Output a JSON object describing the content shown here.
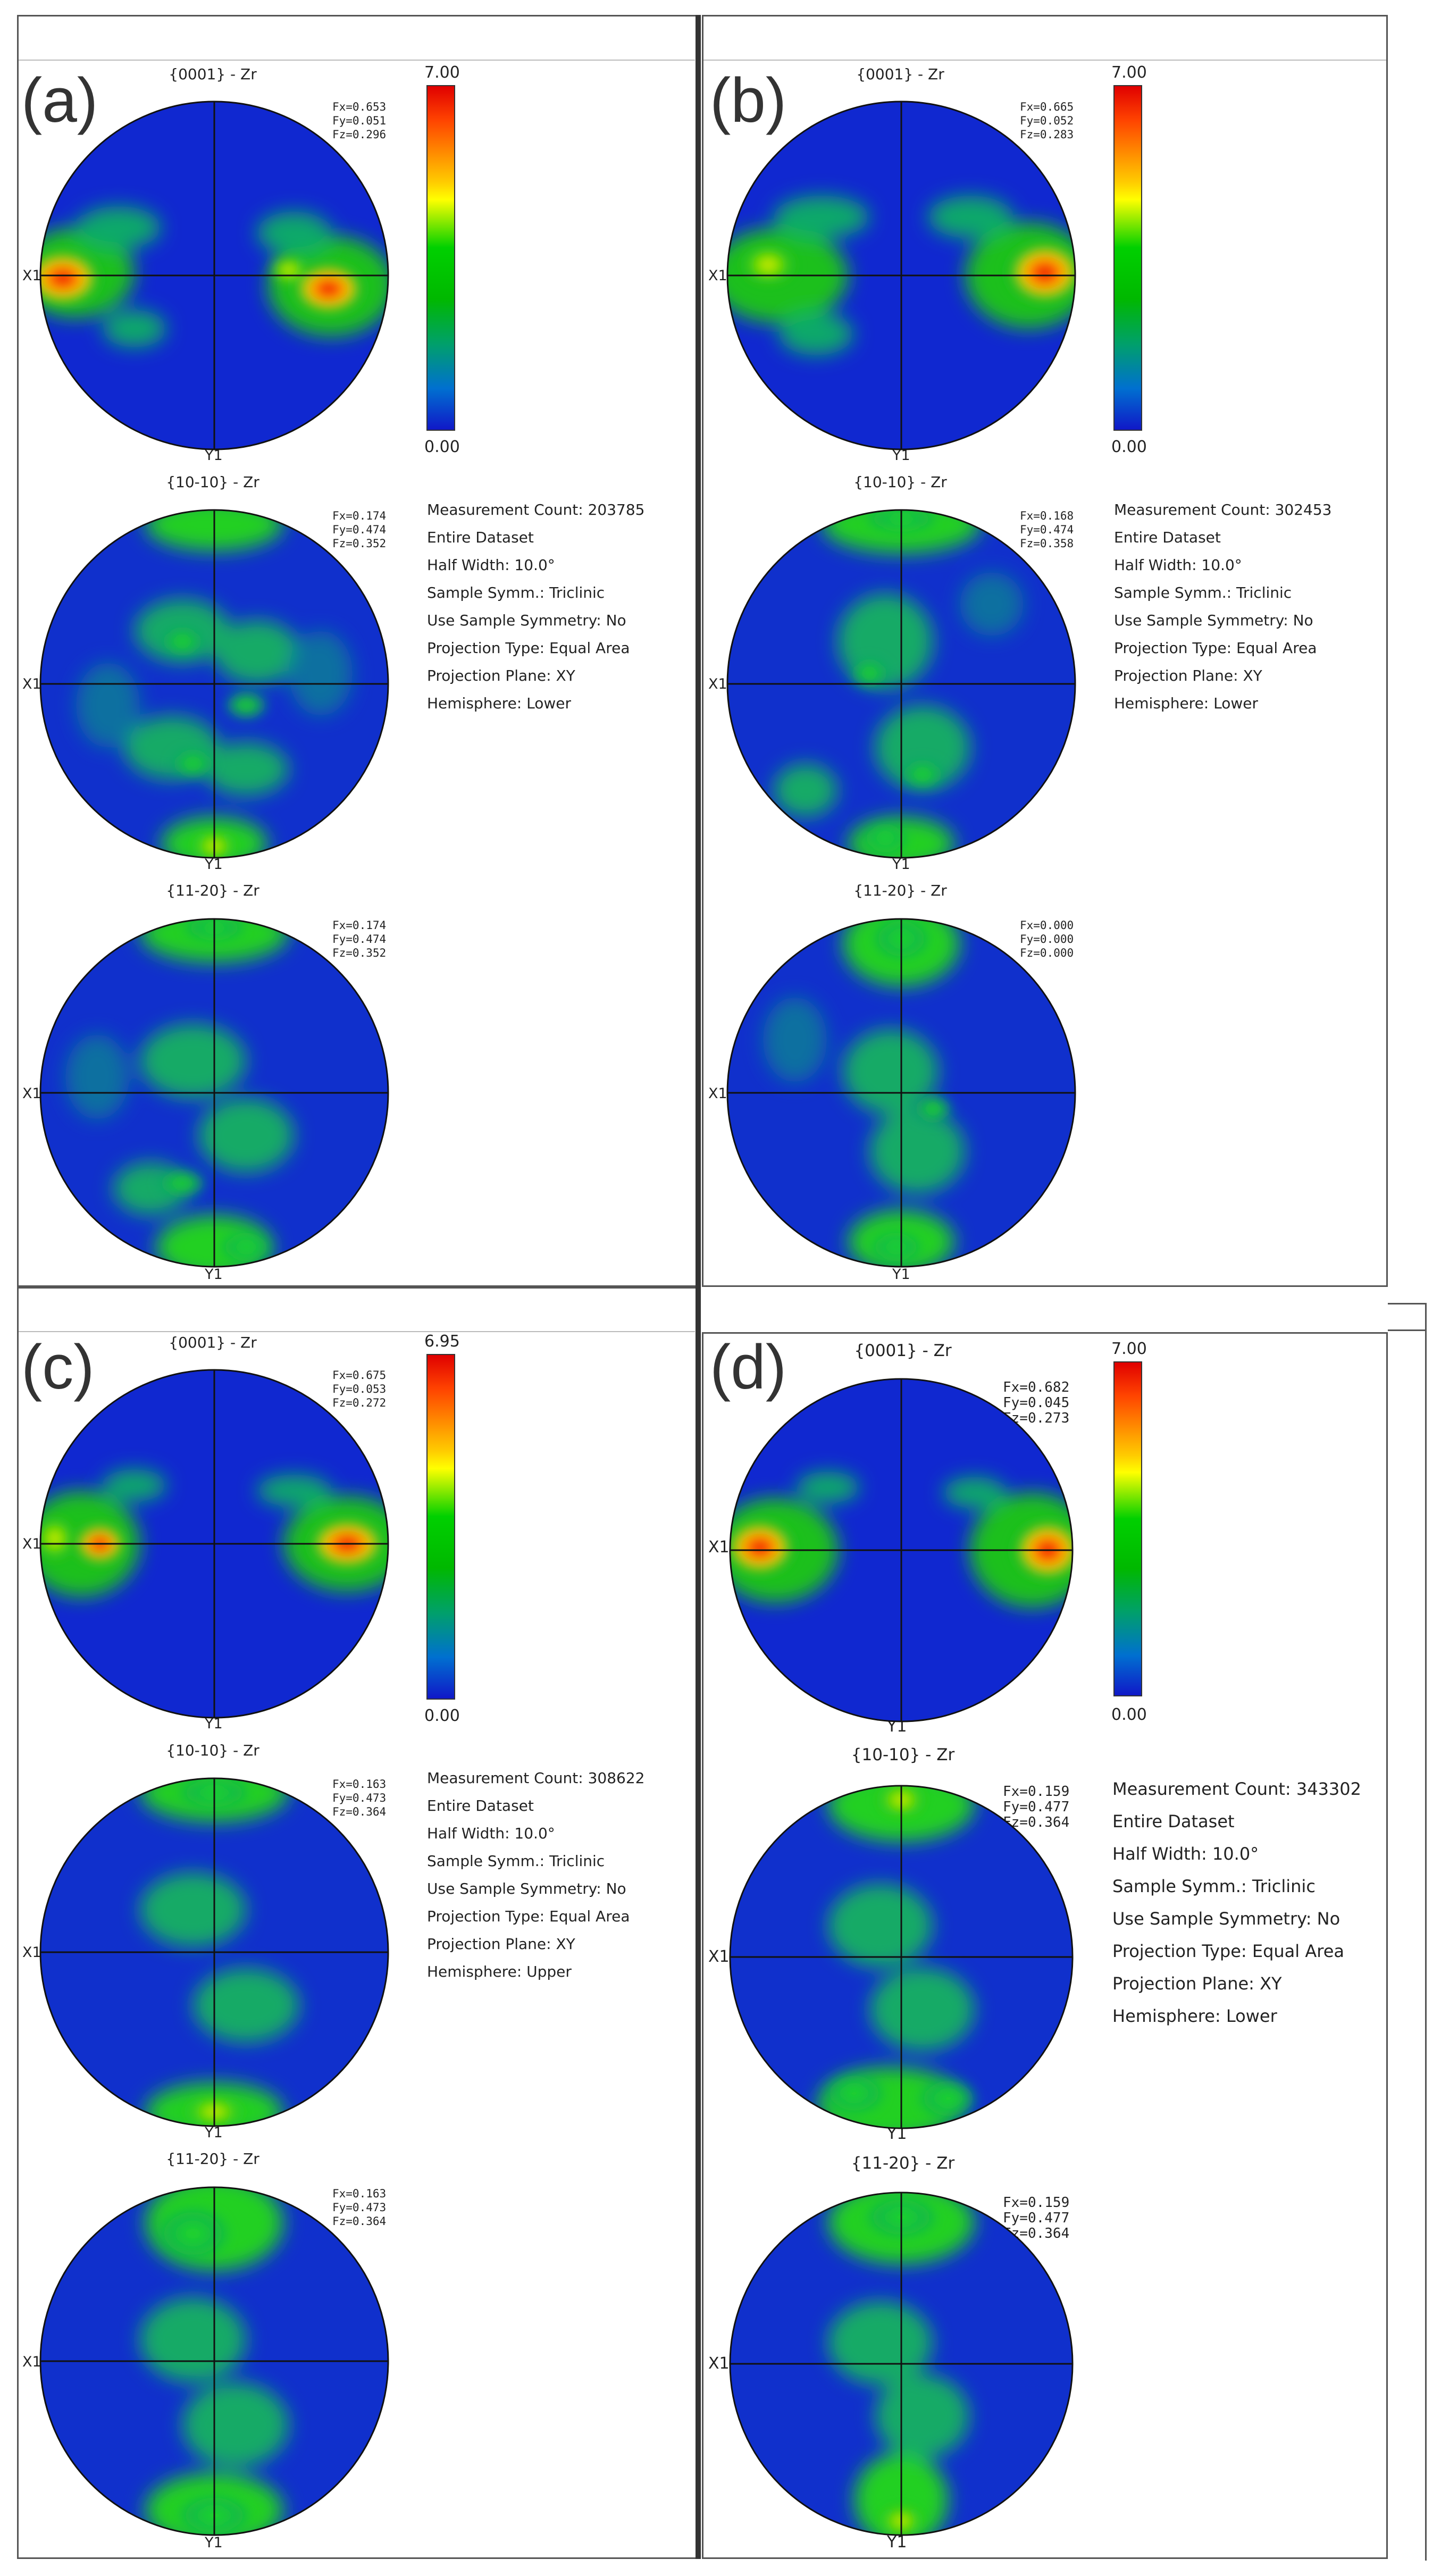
{
  "panels": [
    {
      "label": "(a)",
      "titles": [
        "{0001} - Zr",
        "{10-10} - Zr",
        "{11-20} - Zr"
      ],
      "f_values": [
        "Fx=0.653\nFy=0.051\nFz=0.296",
        "Fx=0.174\nFy=0.474\nFz=0.352",
        "Fx=0.174\nFy=0.474\nFz=0.352"
      ],
      "axis_x": "X1",
      "axis_y": "Y1",
      "scale_max": "7.00",
      "scale_min": "0.00",
      "meta": [
        "Measurement Count: 203785",
        "Entire Dataset",
        "Half Width: 10.0°",
        "Sample Symm.: Triclinic",
        "Use Sample Symmetry: No",
        "Projection Type: Equal Area",
        "Projection Plane: XY",
        "Hemisphere: Lower"
      ]
    },
    {
      "label": "(b)",
      "titles": [
        "{0001} - Zr",
        "{10-10} - Zr",
        "{11-20} - Zr"
      ],
      "f_values": [
        "Fx=0.665\nFy=0.052\nFz=0.283",
        "Fx=0.168\nFy=0.474\nFz=0.358",
        "Fx=0.000\nFy=0.000\nFz=0.000"
      ],
      "axis_x": "X1",
      "axis_y": "Y1",
      "scale_max": "7.00",
      "scale_min": "0.00",
      "meta": [
        "Measurement Count: 302453",
        "Entire Dataset",
        "Half Width: 10.0°",
        "Sample Symm.: Triclinic",
        "Use Sample Symmetry: No",
        "Projection Type: Equal Area",
        "Projection Plane: XY",
        "Hemisphere: Lower"
      ]
    },
    {
      "label": "(c)",
      "titles": [
        "{0001} - Zr",
        "{10-10} - Zr",
        "{11-20} - Zr"
      ],
      "f_values": [
        "Fx=0.675\nFy=0.053\nFz=0.272",
        "Fx=0.163\nFy=0.473\nFz=0.364",
        "Fx=0.163\nFy=0.473\nFz=0.364"
      ],
      "axis_x": "X1",
      "axis_y": "Y1",
      "scale_max": "6.95",
      "scale_min": "0.00",
      "meta": [
        "Measurement Count: 308622",
        "Entire Dataset",
        "Half Width: 10.0°",
        "Sample Symm.: Triclinic",
        "Use Sample Symmetry: No",
        "Projection Type: Equal Area",
        "Projection Plane: XY",
        "Hemisphere: Upper"
      ]
    },
    {
      "label": "(d)",
      "titles": [
        "{0001} - Zr",
        "{10-10} - Zr",
        "{11-20} - Zr"
      ],
      "f_values": [
        "Fx=0.682\nFy=0.045\nFz=0.273",
        "Fx=0.159\nFy=0.477\nFz=0.364",
        "Fx=0.159\nFy=0.477\nFz=0.364"
      ],
      "axis_x": "X1",
      "axis_y": "Y1",
      "scale_max": "7.00",
      "scale_min": "0.00",
      "meta": [
        "Measurement Count: 343302",
        "Entire Dataset",
        "Half Width: 10.0°",
        "Sample Symm.: Triclinic",
        "Use Sample Symmetry: No",
        "Projection Type: Equal Area",
        "Projection Plane: XY",
        "Hemisphere: Lower"
      ]
    }
  ]
}
